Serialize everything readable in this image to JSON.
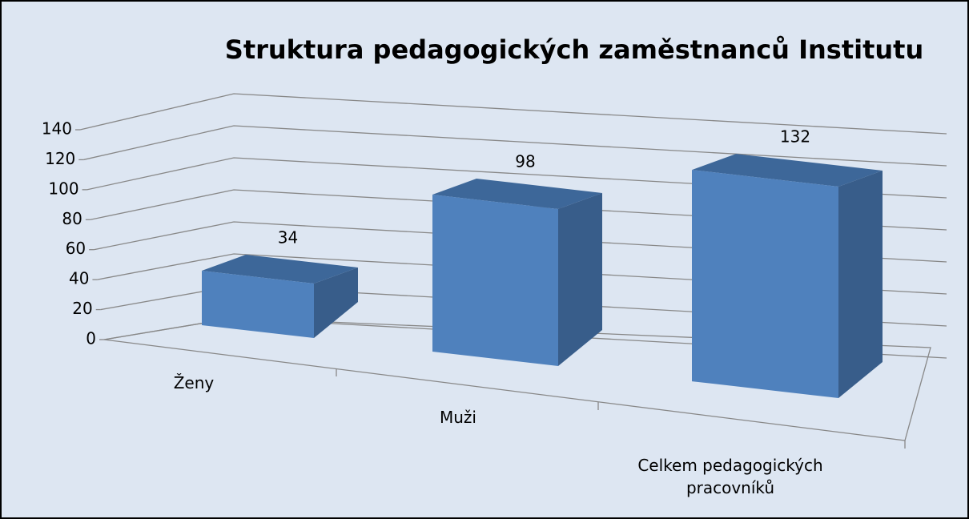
{
  "chart_data": {
    "type": "bar3d",
    "title": "Struktura pedagogických zaměstnanců Institutu",
    "categories": [
      "Ženy",
      "Muži",
      "Celkem pedagogických pracovníků"
    ],
    "values": [
      34,
      98,
      132
    ],
    "color": "#4f81bd",
    "ylim": [
      0,
      140
    ],
    "yticks": [
      0,
      20,
      40,
      60,
      80,
      100,
      120,
      140
    ],
    "grid": true
  }
}
